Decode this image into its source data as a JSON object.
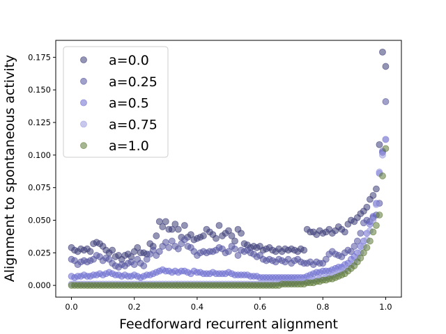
{
  "chart_data": {
    "type": "scatter",
    "title": "",
    "xlabel": "Feedforward recurrent alignment",
    "ylabel": "Alignment to spontaneous activity",
    "xlim": [
      -0.05,
      1.05
    ],
    "ylim": [
      -0.009,
      0.188
    ],
    "xticks": [
      "0.0",
      "0.2",
      "0.4",
      "0.6",
      "0.8",
      "1.0"
    ],
    "yticks": [
      "0.000",
      "0.025",
      "0.050",
      "0.075",
      "0.100",
      "0.125",
      "0.150",
      "0.175"
    ],
    "grid": false,
    "legend_position": "top-left",
    "marker_alpha": 0.55,
    "series": [
      {
        "name": "a=0.0",
        "color": "#3c3c78",
        "x": [
          0.0,
          0.01,
          0.02,
          0.03,
          0.04,
          0.05,
          0.06,
          0.07,
          0.08,
          0.09,
          0.1,
          0.11,
          0.12,
          0.13,
          0.14,
          0.15,
          0.16,
          0.17,
          0.18,
          0.19,
          0.2,
          0.21,
          0.22,
          0.23,
          0.24,
          0.25,
          0.26,
          0.27,
          0.28,
          0.29,
          0.3,
          0.31,
          0.32,
          0.33,
          0.34,
          0.35,
          0.36,
          0.37,
          0.38,
          0.39,
          0.4,
          0.41,
          0.42,
          0.43,
          0.44,
          0.45,
          0.46,
          0.47,
          0.48,
          0.49,
          0.5,
          0.51,
          0.52,
          0.53,
          0.54,
          0.55,
          0.56,
          0.57,
          0.58,
          0.59,
          0.6,
          0.61,
          0.62,
          0.63,
          0.64,
          0.65,
          0.66,
          0.67,
          0.68,
          0.69,
          0.7,
          0.71,
          0.72,
          0.73,
          0.74,
          0.75,
          0.76,
          0.77,
          0.78,
          0.79,
          0.8,
          0.81,
          0.82,
          0.83,
          0.84,
          0.85,
          0.86,
          0.87,
          0.88,
          0.89,
          0.9,
          0.91,
          0.92,
          0.93,
          0.94,
          0.95,
          0.96,
          0.97,
          0.98,
          0.99,
          1.0
        ],
        "y": [
          0.029,
          0.027,
          0.026,
          0.028,
          0.027,
          0.028,
          0.026,
          0.032,
          0.033,
          0.032,
          0.03,
          0.027,
          0.025,
          0.027,
          0.022,
          0.023,
          0.02,
          0.023,
          0.024,
          0.022,
          0.026,
          0.029,
          0.025,
          0.025,
          0.024,
          0.032,
          0.03,
          0.038,
          0.049,
          0.045,
          0.049,
          0.043,
          0.043,
          0.047,
          0.043,
          0.037,
          0.046,
          0.037,
          0.039,
          0.035,
          0.036,
          0.037,
          0.038,
          0.043,
          0.041,
          0.039,
          0.036,
          0.046,
          0.038,
          0.04,
          0.042,
          0.038,
          0.034,
          0.043,
          0.04,
          0.032,
          0.031,
          0.029,
          0.03,
          0.029,
          0.03,
          0.027,
          0.028,
          0.029,
          0.027,
          0.026,
          0.028,
          0.026,
          0.028,
          0.027,
          0.028,
          0.027,
          0.026,
          0.028,
          0.027,
          0.043,
          0.041,
          0.041,
          0.039,
          0.042,
          0.04,
          0.041,
          0.043,
          0.04,
          0.042,
          0.045,
          0.043,
          0.041,
          0.047,
          0.05,
          0.049,
          0.052,
          0.055,
          0.057,
          0.06,
          0.066,
          0.069,
          0.074,
          0.108,
          0.179,
          0.168
        ]
      },
      {
        "name": "a=0.25",
        "color": "#52529e",
        "x": [
          0.0,
          0.01,
          0.02,
          0.03,
          0.04,
          0.05,
          0.06,
          0.07,
          0.08,
          0.09,
          0.1,
          0.11,
          0.12,
          0.13,
          0.14,
          0.15,
          0.16,
          0.17,
          0.18,
          0.19,
          0.2,
          0.21,
          0.22,
          0.23,
          0.24,
          0.25,
          0.26,
          0.27,
          0.28,
          0.29,
          0.3,
          0.31,
          0.32,
          0.33,
          0.34,
          0.35,
          0.36,
          0.37,
          0.38,
          0.39,
          0.4,
          0.41,
          0.42,
          0.43,
          0.44,
          0.45,
          0.46,
          0.47,
          0.48,
          0.49,
          0.5,
          0.51,
          0.52,
          0.53,
          0.54,
          0.55,
          0.56,
          0.57,
          0.58,
          0.59,
          0.6,
          0.61,
          0.62,
          0.63,
          0.64,
          0.65,
          0.66,
          0.67,
          0.68,
          0.69,
          0.7,
          0.71,
          0.72,
          0.73,
          0.74,
          0.75,
          0.76,
          0.77,
          0.78,
          0.79,
          0.8,
          0.81,
          0.82,
          0.83,
          0.84,
          0.85,
          0.86,
          0.87,
          0.88,
          0.89,
          0.9,
          0.91,
          0.92,
          0.93,
          0.94,
          0.95,
          0.96,
          0.97,
          0.98,
          0.99,
          1.0
        ],
        "y": [
          0.02,
          0.019,
          0.016,
          0.018,
          0.019,
          0.018,
          0.019,
          0.02,
          0.023,
          0.022,
          0.019,
          0.021,
          0.02,
          0.017,
          0.015,
          0.014,
          0.016,
          0.015,
          0.017,
          0.018,
          0.016,
          0.02,
          0.017,
          0.015,
          0.02,
          0.024,
          0.027,
          0.023,
          0.026,
          0.03,
          0.033,
          0.029,
          0.034,
          0.03,
          0.028,
          0.032,
          0.035,
          0.03,
          0.029,
          0.026,
          0.023,
          0.025,
          0.026,
          0.025,
          0.026,
          0.026,
          0.027,
          0.029,
          0.028,
          0.025,
          0.026,
          0.03,
          0.028,
          0.023,
          0.027,
          0.026,
          0.027,
          0.025,
          0.024,
          0.022,
          0.023,
          0.02,
          0.019,
          0.02,
          0.019,
          0.018,
          0.02,
          0.019,
          0.018,
          0.02,
          0.017,
          0.019,
          0.02,
          0.018,
          0.017,
          0.017,
          0.018,
          0.016,
          0.018,
          0.017,
          0.017,
          0.02,
          0.024,
          0.026,
          0.024,
          0.023,
          0.022,
          0.025,
          0.027,
          0.026,
          0.03,
          0.034,
          0.04,
          0.048,
          0.05,
          0.049,
          0.052,
          0.054,
          0.063,
          0.102,
          0.141
        ]
      },
      {
        "name": "a=0.5",
        "color": "#6c6cd0",
        "x": [
          0.0,
          0.01,
          0.02,
          0.03,
          0.04,
          0.05,
          0.06,
          0.07,
          0.08,
          0.09,
          0.1,
          0.11,
          0.12,
          0.13,
          0.14,
          0.15,
          0.16,
          0.17,
          0.18,
          0.19,
          0.2,
          0.21,
          0.22,
          0.23,
          0.24,
          0.25,
          0.26,
          0.27,
          0.28,
          0.29,
          0.3,
          0.31,
          0.32,
          0.33,
          0.34,
          0.35,
          0.36,
          0.37,
          0.38,
          0.39,
          0.4,
          0.41,
          0.42,
          0.43,
          0.44,
          0.45,
          0.46,
          0.47,
          0.48,
          0.49,
          0.5,
          0.51,
          0.52,
          0.53,
          0.54,
          0.55,
          0.56,
          0.57,
          0.58,
          0.59,
          0.6,
          0.61,
          0.62,
          0.63,
          0.64,
          0.65,
          0.66,
          0.67,
          0.68,
          0.69,
          0.7,
          0.71,
          0.72,
          0.73,
          0.74,
          0.75,
          0.76,
          0.77,
          0.78,
          0.79,
          0.8,
          0.81,
          0.82,
          0.83,
          0.84,
          0.85,
          0.86,
          0.87,
          0.88,
          0.89,
          0.9,
          0.91,
          0.92,
          0.93,
          0.94,
          0.95,
          0.96,
          0.97,
          0.98,
          0.99,
          1.0
        ],
        "y": [
          0.007,
          0.006,
          0.007,
          0.007,
          0.008,
          0.007,
          0.007,
          0.008,
          0.008,
          0.009,
          0.008,
          0.009,
          0.01,
          0.009,
          0.008,
          0.008,
          0.007,
          0.008,
          0.007,
          0.007,
          0.008,
          0.007,
          0.006,
          0.007,
          0.008,
          0.008,
          0.009,
          0.01,
          0.011,
          0.012,
          0.011,
          0.011,
          0.01,
          0.011,
          0.01,
          0.011,
          0.011,
          0.01,
          0.009,
          0.011,
          0.01,
          0.01,
          0.009,
          0.009,
          0.009,
          0.01,
          0.009,
          0.009,
          0.009,
          0.009,
          0.01,
          0.009,
          0.008,
          0.008,
          0.008,
          0.008,
          0.008,
          0.007,
          0.007,
          0.007,
          0.006,
          0.006,
          0.006,
          0.006,
          0.006,
          0.006,
          0.006,
          0.006,
          0.006,
          0.006,
          0.006,
          0.006,
          0.006,
          0.006,
          0.006,
          0.007,
          0.008,
          0.009,
          0.01,
          0.01,
          0.011,
          0.011,
          0.011,
          0.012,
          0.013,
          0.014,
          0.014,
          0.016,
          0.017,
          0.02,
          0.022,
          0.025,
          0.03,
          0.034,
          0.04,
          0.047,
          0.053,
          0.063,
          0.086,
          0.103,
          0.112
        ]
      },
      {
        "name": "a=0.75",
        "color": "#9a9ae0",
        "x": [
          0.0,
          0.01,
          0.02,
          0.03,
          0.04,
          0.05,
          0.06,
          0.07,
          0.08,
          0.09,
          0.1,
          0.11,
          0.12,
          0.13,
          0.14,
          0.15,
          0.16,
          0.17,
          0.18,
          0.19,
          0.2,
          0.21,
          0.22,
          0.23,
          0.24,
          0.25,
          0.26,
          0.27,
          0.28,
          0.29,
          0.3,
          0.31,
          0.32,
          0.33,
          0.34,
          0.35,
          0.36,
          0.37,
          0.38,
          0.39,
          0.4,
          0.41,
          0.42,
          0.43,
          0.44,
          0.45,
          0.46,
          0.47,
          0.48,
          0.49,
          0.5,
          0.51,
          0.52,
          0.53,
          0.54,
          0.55,
          0.56,
          0.57,
          0.58,
          0.59,
          0.6,
          0.61,
          0.62,
          0.63,
          0.64,
          0.65,
          0.66,
          0.67,
          0.68,
          0.69,
          0.7,
          0.71,
          0.72,
          0.73,
          0.74,
          0.75,
          0.76,
          0.77,
          0.78,
          0.79,
          0.8,
          0.81,
          0.82,
          0.83,
          0.84,
          0.85,
          0.86,
          0.87,
          0.88,
          0.89,
          0.9,
          0.91,
          0.92,
          0.93,
          0.94,
          0.95,
          0.96,
          0.97,
          0.98,
          0.99,
          1.0
        ],
        "y": [
          0.001,
          0.001,
          0.001,
          0.001,
          0.001,
          0.001,
          0.001,
          0.001,
          0.001,
          0.001,
          0.001,
          0.001,
          0.001,
          0.001,
          0.001,
          0.001,
          0.001,
          0.001,
          0.001,
          0.001,
          0.001,
          0.001,
          0.001,
          0.001,
          0.001,
          0.001,
          0.001,
          0.001,
          0.001,
          0.001,
          0.001,
          0.001,
          0.001,
          0.001,
          0.001,
          0.001,
          0.001,
          0.001,
          0.001,
          0.001,
          0.001,
          0.001,
          0.001,
          0.001,
          0.001,
          0.001,
          0.001,
          0.001,
          0.001,
          0.001,
          0.001,
          0.001,
          0.001,
          0.001,
          0.001,
          0.001,
          0.001,
          0.001,
          0.001,
          0.001,
          0.001,
          0.001,
          0.001,
          0.001,
          0.001,
          0.002,
          0.002,
          0.002,
          0.002,
          0.002,
          0.002,
          0.002,
          0.003,
          0.003,
          0.003,
          0.003,
          0.004,
          0.004,
          0.005,
          0.005,
          0.006,
          0.006,
          0.007,
          0.008,
          0.009,
          0.01,
          0.011,
          0.012,
          0.014,
          0.016,
          0.018,
          0.021,
          0.025,
          0.03,
          0.035,
          0.042,
          0.05,
          0.062,
          0.087,
          0.1,
          0.112
        ]
      },
      {
        "name": "a=1.0",
        "color": "#5c7a35",
        "x": [
          0.0,
          0.01,
          0.02,
          0.03,
          0.04,
          0.05,
          0.06,
          0.07,
          0.08,
          0.09,
          0.1,
          0.11,
          0.12,
          0.13,
          0.14,
          0.15,
          0.16,
          0.17,
          0.18,
          0.19,
          0.2,
          0.21,
          0.22,
          0.23,
          0.24,
          0.25,
          0.26,
          0.27,
          0.28,
          0.29,
          0.3,
          0.31,
          0.32,
          0.33,
          0.34,
          0.35,
          0.36,
          0.37,
          0.38,
          0.39,
          0.4,
          0.41,
          0.42,
          0.43,
          0.44,
          0.45,
          0.46,
          0.47,
          0.48,
          0.49,
          0.5,
          0.51,
          0.52,
          0.53,
          0.54,
          0.55,
          0.56,
          0.57,
          0.58,
          0.59,
          0.6,
          0.61,
          0.62,
          0.63,
          0.64,
          0.65,
          0.66,
          0.67,
          0.68,
          0.69,
          0.7,
          0.71,
          0.72,
          0.73,
          0.74,
          0.75,
          0.76,
          0.77,
          0.78,
          0.79,
          0.8,
          0.81,
          0.82,
          0.83,
          0.84,
          0.85,
          0.86,
          0.87,
          0.88,
          0.89,
          0.9,
          0.91,
          0.92,
          0.93,
          0.94,
          0.95,
          0.96,
          0.97,
          0.98,
          0.99,
          1.0
        ],
        "y": [
          0.0,
          0.0,
          0.0,
          0.0,
          0.0,
          0.0,
          0.0,
          0.0,
          0.0,
          0.0,
          0.0,
          0.0,
          0.0,
          0.0,
          0.0,
          0.0,
          0.0,
          0.0,
          0.0,
          0.0,
          0.0,
          0.0,
          0.0,
          0.0,
          0.0,
          0.0,
          0.0,
          0.0,
          0.0,
          0.0,
          0.0,
          0.0,
          0.0,
          0.0,
          0.0,
          0.0,
          0.0,
          0.0,
          0.0,
          0.0,
          0.0,
          0.0,
          0.0,
          0.0,
          0.0,
          0.0,
          0.0,
          0.0,
          0.0,
          0.0,
          0.0,
          0.0,
          0.0,
          0.0,
          0.0,
          0.0,
          0.0,
          0.0,
          0.0,
          0.0,
          0.0,
          0.0,
          0.0,
          0.0,
          0.0,
          0.0,
          0.0,
          0.001,
          0.001,
          0.001,
          0.001,
          0.001,
          0.001,
          0.001,
          0.001,
          0.002,
          0.002,
          0.002,
          0.003,
          0.003,
          0.004,
          0.004,
          0.005,
          0.005,
          0.006,
          0.007,
          0.008,
          0.009,
          0.011,
          0.013,
          0.015,
          0.018,
          0.021,
          0.025,
          0.029,
          0.034,
          0.041,
          0.046,
          0.054,
          0.084,
          0.105
        ]
      }
    ]
  }
}
